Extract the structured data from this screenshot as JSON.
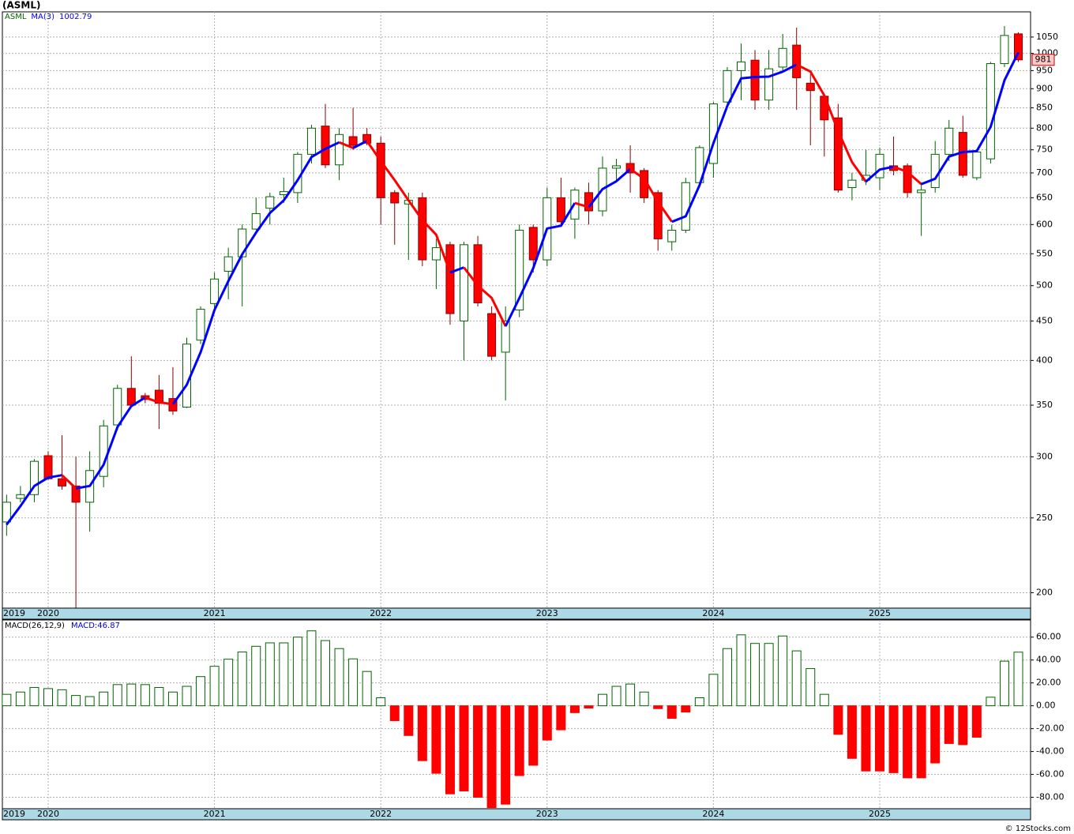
{
  "chart_data": [
    {
      "type": "candlestick",
      "title": "(ASML)",
      "symbol": "ASML",
      "categories": [
        "2019",
        null,
        null,
        "2020",
        null,
        null,
        null,
        null,
        null,
        null,
        null,
        null,
        null,
        null,
        null,
        "2021",
        null,
        null,
        null,
        null,
        null,
        null,
        null,
        null,
        null,
        null,
        null,
        "2022",
        null,
        null,
        null,
        null,
        null,
        null,
        null,
        null,
        null,
        null,
        null,
        "2023",
        null,
        null,
        null,
        null,
        null,
        null,
        null,
        null,
        null,
        null,
        null,
        "2024",
        null,
        null,
        null,
        null,
        null,
        null,
        null,
        null,
        null,
        null,
        null,
        "2025",
        null,
        null,
        null,
        null,
        null,
        null,
        null,
        null,
        null,
        null
      ],
      "open": [
        247,
        265,
        268,
        301,
        281,
        275,
        262,
        283,
        330,
        368,
        360,
        366,
        357,
        348,
        425,
        474,
        522,
        545,
        592,
        630,
        656,
        660,
        740,
        805,
        717,
        780,
        785,
        765,
        660,
        638,
        650,
        540,
        565,
        450,
        565,
        460,
        410,
        465,
        595,
        540,
        650,
        610,
        660,
        625,
        710,
        720,
        705,
        660,
        570,
        590,
        680,
        720,
        865,
        950,
        980,
        870,
        960,
        1025,
        915,
        880,
        825,
        670,
        685,
        690,
        715,
        715,
        660,
        670,
        740,
        790,
        690,
        730,
        970,
        1060
      ],
      "high": [
        268,
        275,
        298,
        305,
        320,
        300,
        305,
        335,
        372,
        405,
        363,
        383,
        392,
        428,
        470,
        520,
        560,
        600,
        650,
        660,
        690,
        745,
        808,
        860,
        800,
        850,
        800,
        780,
        665,
        660,
        660,
        575,
        570,
        570,
        580,
        470,
        470,
        600,
        600,
        670,
        690,
        670,
        680,
        735,
        730,
        760,
        710,
        665,
        600,
        690,
        760,
        865,
        960,
        1030,
        1010,
        1010,
        1060,
        1080,
        940,
        880,
        860,
        700,
        750,
        755,
        780,
        720,
        680,
        770,
        820,
        830,
        750,
        975,
        1085,
        1065
      ],
      "low": [
        237,
        262,
        262,
        280,
        272,
        188,
        240,
        274,
        325,
        348,
        352,
        326,
        340,
        347,
        420,
        465,
        480,
        470,
        590,
        600,
        640,
        640,
        720,
        710,
        685,
        750,
        760,
        600,
        565,
        540,
        530,
        495,
        445,
        400,
        470,
        400,
        355,
        455,
        520,
        530,
        600,
        575,
        600,
        615,
        680,
        660,
        640,
        555,
        555,
        585,
        670,
        690,
        860,
        870,
        845,
        845,
        950,
        845,
        760,
        735,
        660,
        645,
        675,
        665,
        695,
        650,
        580,
        660,
        725,
        690,
        685,
        720,
        960,
        975
      ],
      "close": [
        262,
        268,
        296,
        281,
        275,
        262,
        288,
        329,
        368,
        350,
        356,
        352,
        344,
        420,
        466,
        510,
        545,
        592,
        620,
        652,
        662,
        740,
        800,
        717,
        785,
        760,
        765,
        650,
        640,
        645,
        540,
        560,
        460,
        565,
        475,
        405,
        450,
        590,
        540,
        650,
        605,
        665,
        625,
        710,
        715,
        700,
        650,
        575,
        590,
        680,
        755,
        860,
        950,
        975,
        870,
        955,
        1015,
        930,
        895,
        820,
        665,
        685,
        695,
        740,
        705,
        660,
        665,
        740,
        800,
        695,
        745,
        970,
        1055,
        981
      ],
      "up_color": "#006400",
      "down_color": "#ff0000",
      "down_edge": "#8b0000",
      "ma": {
        "name": "MA(3)",
        "rise_color": "#0000ff",
        "fall_color": "#ff0000",
        "values": [
          245,
          259,
          275,
          282,
          284,
          273,
          275,
          293,
          328,
          349,
          358,
          353,
          351,
          372,
          410,
          465,
          507,
          549,
          586,
          621,
          645,
          685,
          734,
          752,
          767,
          754,
          770,
          725,
          685,
          645,
          608,
          582,
          520,
          528,
          500,
          482,
          443,
          482,
          527,
          593,
          598,
          640,
          632,
          667,
          683,
          708,
          688,
          642,
          605,
          615,
          675,
          765,
          855,
          928,
          932,
          933,
          947,
          967,
          947,
          882,
          793,
          723,
          682,
          707,
          713,
          702,
          677,
          688,
          735,
          745,
          747,
          803,
          923,
          1002.79
        ]
      },
      "ylim": [
        191,
        1132
      ],
      "log_scale": true,
      "grid": true,
      "yticks": [
        200,
        250,
        300,
        350,
        400,
        450,
        500,
        550,
        600,
        650,
        700,
        750,
        800,
        850,
        900,
        950,
        1000,
        1050
      ]
    },
    {
      "type": "bar",
      "title": "MACD(26,12,9)",
      "legend": "MACD:46.87",
      "values": [
        10,
        12,
        16,
        15,
        14,
        9,
        8,
        12,
        18.5,
        19,
        18.5,
        16,
        12,
        17,
        25.5,
        34.5,
        40.7,
        47,
        52,
        55,
        55,
        60,
        65.5,
        57,
        50,
        41,
        30,
        7,
        -13,
        -26,
        -48,
        -59,
        -77,
        -74.5,
        -80,
        -89,
        -86,
        -61,
        -52,
        -30,
        -21,
        -6,
        -2,
        10,
        17,
        19,
        12,
        -2.5,
        -11,
        -5.5,
        7,
        27.5,
        50,
        62,
        54.5,
        54.5,
        61,
        48,
        32.5,
        10,
        -25,
        -46,
        -57,
        -57,
        -58.5,
        -63,
        -63,
        -50,
        -33,
        -34,
        -27.5,
        7.5,
        39,
        46.87
      ],
      "pos_color": "#006400",
      "neg_color": "#ff0000",
      "ylim": [
        -90,
        75
      ],
      "grid": true,
      "yticks": [
        {
          "value": 60,
          "label": "60.00"
        },
        {
          "value": 40,
          "label": "40.00"
        },
        {
          "value": 20,
          "label": "20.00"
        },
        {
          "value": 0,
          "label": "0.00"
        },
        {
          "value": -20,
          "label": "-20.00"
        },
        {
          "value": -40,
          "label": "-40.00"
        },
        {
          "value": -60,
          "label": "-60.00"
        },
        {
          "value": -80,
          "label": "-80.00"
        }
      ]
    }
  ],
  "footer": "© 12Stocks.com"
}
